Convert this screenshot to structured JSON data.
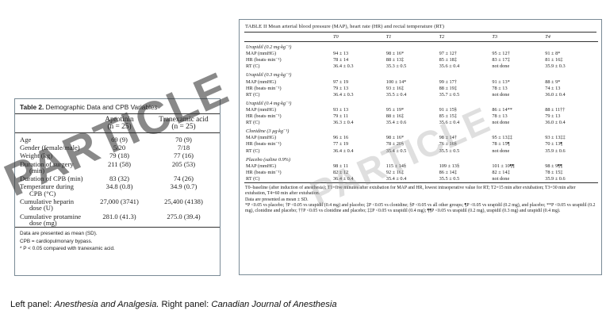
{
  "left_panel": {
    "caption_num": "Table 2.",
    "caption_title": "Demographic Data and CPB Variables",
    "col1": "Aprotinin",
    "col1_n": "(n = 25)",
    "col2": "Tranexamic acid",
    "col2_n": "(n = 25)",
    "rows": [
      {
        "label": "Age",
        "sub": "",
        "a": "69 (9)",
        "b": "70 (9)"
      },
      {
        "label": "Gender (female/male)",
        "sub": "",
        "a": "5/20",
        "b": "7/18"
      },
      {
        "label": "Weight (kg)",
        "sub": "",
        "a": "79 (18)",
        "b": "77 (16)"
      },
      {
        "label": "Duration of surgery",
        "sub": "(min)",
        "a": "211 (58)",
        "b": "205 (53)"
      },
      {
        "label": "Duration of CPB (min)",
        "sub": "",
        "a": "83 (32)",
        "b": "74 (26)"
      },
      {
        "label": "Temperature during",
        "sub": "CPB (°C)",
        "a": "34.8 (0.8)",
        "b": "34.9 (0.7)"
      },
      {
        "label": "Cumulative heparin",
        "sub": "dose (U)",
        "a": "27,000 (3741)",
        "b": "25,400 (4138)"
      },
      {
        "label": "Cumulative protamine",
        "sub": "dose (mg)",
        "a": "281.0 (41.3)",
        "b": "275.0 (39.4)"
      }
    ],
    "notes": [
      "Data are presented as mean (SD).",
      "CPB = cardiopulmonary bypass.",
      "* P < 0.05 compared with tranexamic acid."
    ],
    "watermark": "PARTICLE"
  },
  "right_panel": {
    "caption": "TABLE II  Mean arterial blood pressure (MAP), heart rate (HR) and rectal temperature (RT)",
    "headers": [
      "",
      "T0",
      "T1",
      "T2",
      "T3",
      "T4"
    ],
    "groups": [
      {
        "name": "Urapidil (0.2 mg·kg⁻¹)",
        "rows": [
          [
            "MAP (mmHG)",
            "94 ± 13",
            "98 ± 16*",
            "97 ± 12†",
            "95 ± 12†",
            "91 ± 8*"
          ],
          [
            "HR (beats·min⁻¹)",
            "78 ± 14",
            "88 ± 13‡",
            "85 ± 18‡",
            "83 ± 17‡",
            "81 ± 16‡"
          ],
          [
            "RT (C)",
            "36.4 ± 0.3",
            "35.3 ± 0.5",
            "35.6 ± 0.4",
            "not done",
            "35.9 ± 0.3"
          ]
        ]
      },
      {
        "name": "Urapidil (0.3 mg·kg⁻¹)",
        "rows": [
          [
            "MAP (mmHG)",
            "97 ± 19",
            "100 ± 14*",
            "99 ± 17†",
            "91 ± 13*",
            "88 ± 9*"
          ],
          [
            "HR (beats·min⁻¹)",
            "79 ± 13",
            "93 ± 16‡",
            "88 ± 19‡",
            "78 ± 13",
            "74 ± 13"
          ],
          [
            "RT (C)",
            "36.4 ± 0.3",
            "35.5 ± 0.4",
            "35.7 ± 0.5",
            "not done",
            "36.0 ± 0.4"
          ]
        ]
      },
      {
        "name": "Urapidil (0.4 mg·kg⁻¹)",
        "rows": [
          [
            "MAP (mmHG)",
            "93 ± 13",
            "95 ± 19*",
            "91 ± 15§",
            "86 ± 14**",
            "88 ± 11††"
          ],
          [
            "HR (beats·min⁻¹)",
            "79 ± 11",
            "88 ± 16‡",
            "85 ± 15‡",
            "78 ± 13",
            "79 ± 13"
          ],
          [
            "RT (C)",
            "36.3 ± 0.4",
            "35.4 ± 0.6",
            "35.6 ± 0.4",
            "not done",
            "36.0 ± 0.4"
          ]
        ]
      },
      {
        "name": "Clonidine (3 μg·kg⁻¹)",
        "rows": [
          [
            "MAP (mmHG)",
            "96 ± 16",
            "98 ± 16*",
            "98 ± 14†",
            "95 ± 13‡‡",
            "93 ± 13‡‡"
          ],
          [
            "HR (beats·min⁻¹)",
            "77 ± 19",
            "78 ± 20§",
            "76 ± 16§",
            "78 ± 15¶",
            "70 ± 13¶"
          ],
          [
            "RT (C)",
            "36.4 ± 0.4",
            "35.4 ± 0.5",
            "35.5 ± 0.5",
            "not done",
            "35.9 ± 0.6"
          ]
        ]
      },
      {
        "name": "Placebo (saline 0.9%)",
        "rows": [
          [
            "MAP (mmHG)",
            "98 ± 11",
            "115 ± 14§",
            "109 ± 13§",
            "101 ± 10¶¶",
            "98 ± 9¶¶"
          ],
          [
            "HR (beats·min⁻¹)",
            "82 ± 12",
            "92 ± 16‡",
            "86 ± 14‡",
            "82 ± 14‡",
            "78 ± 15‡"
          ],
          [
            "RT (C)",
            "36.4 ± 0.4",
            "35.4 ± 0.4",
            "35.5 ± 0.5",
            "not done",
            "35.9 ± 0.6"
          ]
        ]
      }
    ],
    "notes": [
      "T0–baseline (after induction of anesthesia); T1=five minutes after extubation for MAP and HR, lowest intraoperative value for RT; T2=15 min after extubation; T3=30 min after extubation, T4=60 min after extubation.",
      "Data are presented as mean ± SD.",
      "*P <0.05 vs placebo; †P <0.05 vs urapidil (0.4 mg) and placebo; ‡P <0.05 vs clonidine; §P <0.05 vs all other groups; ¶P <0.05 vs urapidil (0.2 mg), and placebo; **P <0.05 vs urapidil (0.2 mg), clonidine and placebo; ††P <0.05 vs clonidine and placebo; ‡‡P <0.05 vs urapidil (0.4 mg); ¶¶P <0.05 vs urapidil (0.2 mg), urapidil (0.3 mg) and urapidil (0.4 mg)."
    ],
    "watermark": "PARTICLE"
  },
  "caption": {
    "prefix_left": "Left panel: ",
    "left_source": "Anesthesia and Analgesia.",
    "prefix_right": " Right panel: ",
    "right_source": "Canadian Journal of Anesthesia"
  }
}
